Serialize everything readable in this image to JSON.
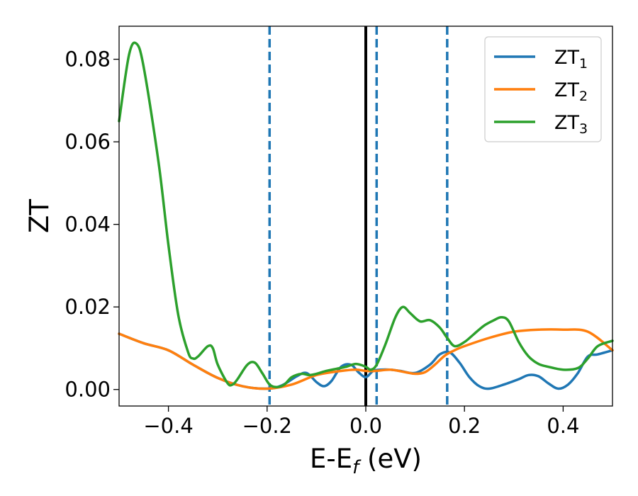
{
  "chart_data": {
    "type": "line",
    "xlabel": "E-E",
    "xlabel_sub": "f",
    "xlabel_unit": " (eV)",
    "ylabel": "ZT",
    "xlim": [
      -0.5,
      0.5
    ],
    "ylim": [
      -0.004,
      0.088
    ],
    "xticks": [
      -0.4,
      -0.2,
      0.0,
      0.2,
      0.4
    ],
    "xtick_labels": [
      "−0.4",
      "−0.2",
      "0.0",
      "0.2",
      "0.4"
    ],
    "yticks": [
      0.0,
      0.02,
      0.04,
      0.06,
      0.08
    ],
    "ytick_labels": [
      "0.00",
      "0.02",
      "0.04",
      "0.06",
      "0.08"
    ],
    "legend_position": "top-right",
    "vlines": [
      {
        "x": 0.0,
        "color": "#000000",
        "style": "solid"
      },
      {
        "x": -0.195,
        "color": "#1f77b4",
        "style": "dashed"
      },
      {
        "x": 0.022,
        "color": "#1f77b4",
        "style": "dashed"
      },
      {
        "x": 0.165,
        "color": "#1f77b4",
        "style": "dashed"
      }
    ],
    "series": [
      {
        "name": "ZT",
        "sub": "1",
        "color": "#1f77b4",
        "x": [
          -0.5,
          -0.45,
          -0.4,
          -0.35,
          -0.3,
          -0.25,
          -0.2,
          -0.17,
          -0.14,
          -0.12,
          -0.1,
          -0.085,
          -0.07,
          -0.05,
          -0.03,
          -0.015,
          0.0,
          0.015,
          0.03,
          0.05,
          0.07,
          0.1,
          0.13,
          0.15,
          0.17,
          0.19,
          0.21,
          0.23,
          0.25,
          0.28,
          0.31,
          0.33,
          0.35,
          0.37,
          0.39,
          0.41,
          0.43,
          0.45,
          0.47,
          0.5
        ],
        "y": [
          0.0135,
          0.0112,
          0.0095,
          0.006,
          0.0028,
          0.0008,
          0.0002,
          0.001,
          0.0032,
          0.004,
          0.0018,
          0.0008,
          0.002,
          0.0055,
          0.006,
          0.0042,
          0.003,
          0.0045,
          0.0048,
          0.0048,
          0.0045,
          0.004,
          0.006,
          0.0085,
          0.009,
          0.0065,
          0.003,
          0.0008,
          0.0002,
          0.0012,
          0.0025,
          0.0035,
          0.0032,
          0.0015,
          0.0002,
          0.0012,
          0.004,
          0.008,
          0.0085,
          0.0095
        ]
      },
      {
        "name": "ZT",
        "sub": "2",
        "color": "#ff7f0e",
        "x": [
          -0.5,
          -0.45,
          -0.4,
          -0.35,
          -0.3,
          -0.25,
          -0.2,
          -0.15,
          -0.1,
          -0.05,
          -0.02,
          0.0,
          0.02,
          0.05,
          0.08,
          0.1,
          0.12,
          0.14,
          0.16,
          0.18,
          0.2,
          0.25,
          0.3,
          0.35,
          0.4,
          0.45,
          0.5
        ],
        "y": [
          0.0135,
          0.0112,
          0.0095,
          0.006,
          0.0028,
          0.0008,
          0.0002,
          0.0012,
          0.0035,
          0.0045,
          0.0048,
          0.0045,
          0.0045,
          0.0048,
          0.0042,
          0.0038,
          0.0042,
          0.006,
          0.0082,
          0.0095,
          0.0105,
          0.0125,
          0.014,
          0.0145,
          0.0145,
          0.014,
          0.0095
        ]
      },
      {
        "name": "ZT",
        "sub": "3",
        "color": "#2ca02c",
        "x": [
          -0.5,
          -0.48,
          -0.465,
          -0.45,
          -0.42,
          -0.4,
          -0.38,
          -0.36,
          -0.35,
          -0.34,
          -0.32,
          -0.31,
          -0.3,
          -0.28,
          -0.27,
          -0.26,
          -0.24,
          -0.225,
          -0.21,
          -0.195,
          -0.18,
          -0.165,
          -0.15,
          -0.13,
          -0.115,
          -0.1,
          -0.08,
          -0.06,
          -0.04,
          -0.02,
          0.0,
          0.01,
          0.022,
          0.04,
          0.06,
          0.075,
          0.09,
          0.11,
          0.13,
          0.15,
          0.165,
          0.18,
          0.2,
          0.22,
          0.24,
          0.26,
          0.275,
          0.29,
          0.31,
          0.33,
          0.35,
          0.37,
          0.4,
          0.43,
          0.45,
          0.47,
          0.5
        ],
        "y": [
          0.065,
          0.081,
          0.0838,
          0.078,
          0.055,
          0.035,
          0.018,
          0.009,
          0.0075,
          0.008,
          0.0105,
          0.01,
          0.006,
          0.0015,
          0.0012,
          0.0025,
          0.006,
          0.0065,
          0.004,
          0.0012,
          0.0006,
          0.0012,
          0.003,
          0.0038,
          0.0035,
          0.0038,
          0.0045,
          0.005,
          0.0055,
          0.0062,
          0.0055,
          0.0048,
          0.006,
          0.011,
          0.0175,
          0.02,
          0.0185,
          0.0165,
          0.0168,
          0.015,
          0.0125,
          0.0105,
          0.0115,
          0.0135,
          0.0155,
          0.0168,
          0.0175,
          0.0165,
          0.0115,
          0.008,
          0.0062,
          0.0055,
          0.0048,
          0.0052,
          0.0075,
          0.0105,
          0.0118
        ]
      }
    ]
  }
}
